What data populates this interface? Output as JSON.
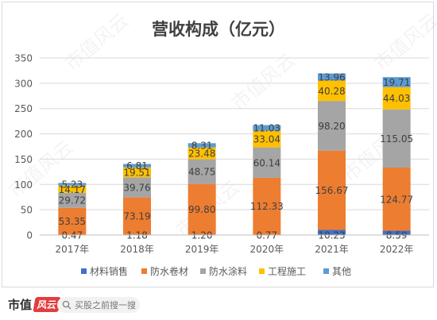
{
  "chart_data": {
    "type": "bar",
    "stacked": true,
    "title": "营收构成（亿元）",
    "categories": [
      "2017年",
      "2018年",
      "2019年",
      "2020年",
      "2021年",
      "2022年"
    ],
    "series": [
      {
        "name": "材料销售",
        "color": "#4472c4",
        "values": [
          0.47,
          1.18,
          1.2,
          0.77,
          10.23,
          8.59
        ]
      },
      {
        "name": "防水卷材",
        "color": "#ed7d31",
        "values": [
          53.35,
          73.19,
          99.8,
          112.33,
          156.67,
          124.77
        ]
      },
      {
        "name": "防水涂料",
        "color": "#a5a5a5",
        "values": [
          29.72,
          39.76,
          48.75,
          60.14,
          98.2,
          115.05
        ]
      },
      {
        "name": "工程施工",
        "color": "#ffc000",
        "values": [
          14.17,
          19.51,
          23.48,
          33.04,
          40.28,
          44.03
        ]
      },
      {
        "name": "其他",
        "color": "#5b9bd5",
        "values": [
          5.23,
          6.81,
          8.31,
          11.03,
          13.96,
          19.71
        ]
      }
    ],
    "data_labels": [
      [
        "0.47",
        "1.18",
        "1.20",
        "0.77",
        "10.23",
        "8.59"
      ],
      [
        "53.35",
        "73.19",
        "99.80",
        "112.33",
        "156.67",
        "124.77"
      ],
      [
        "29.72",
        "39.76",
        "48.75",
        "60.14",
        "98.20",
        "115.05"
      ],
      [
        "14.17",
        "19.51",
        "23.48",
        "33.04",
        "40.28",
        "44.03"
      ],
      [
        "5.23",
        "6.81",
        "8.31",
        "11.03",
        "13.96",
        "19.71"
      ]
    ],
    "yticks": [
      "0",
      "50",
      "100",
      "150",
      "200",
      "250",
      "300",
      "350"
    ],
    "ylim": [
      0,
      350
    ],
    "grid": true,
    "legend_position": "bottom"
  },
  "watermark": "市值风云",
  "footer": {
    "brand": "市值",
    "brand_seal": "风云",
    "search_placeholder": "买股之前搜一搜",
    "search_icon": "search-icon"
  }
}
